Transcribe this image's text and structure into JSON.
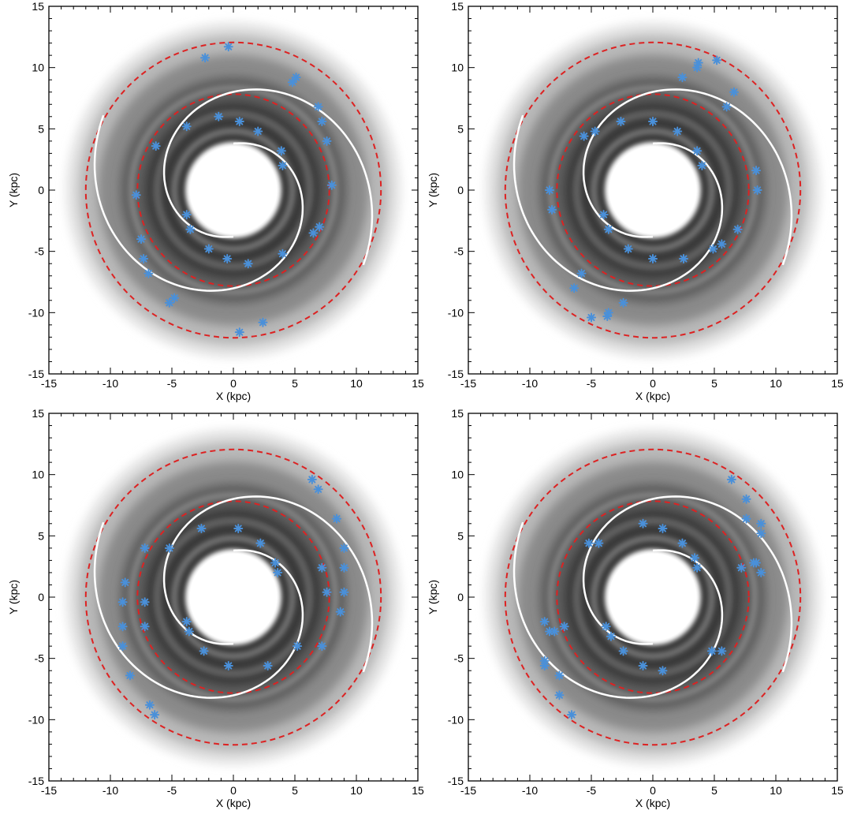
{
  "figure": {
    "layout": "2x2 grid of panels",
    "background": "#ffffff",
    "disk_shading": "grayscale density map, white central hole",
    "colors": {
      "axes": "#000000",
      "dashed_circles": "#dd2222",
      "fitted_arms": "#ffffff",
      "markers": "#4a90d9"
    }
  },
  "chart_data": [
    {
      "type": "scatter",
      "panel": "top-left",
      "xlabel": "X (kpc)",
      "ylabel": "Y (kpc)",
      "xlim": [
        -15,
        15
      ],
      "ylim": [
        -15,
        15
      ],
      "xticks": [
        "-15",
        "-10",
        "-5",
        "0",
        "5",
        "10",
        "15"
      ],
      "yticks": [
        "-15",
        "-10",
        "-5",
        "0",
        "5",
        "10",
        "15"
      ],
      "dashed_circles_radius": [
        7.8,
        12.0
      ],
      "arm_fit": {
        "r_start": 3.8,
        "r_end": 12.2,
        "turns_deg": 300
      },
      "points": [
        [
          -2.3,
          10.8
        ],
        [
          -0.4,
          11.7
        ],
        [
          4.8,
          8.8
        ],
        [
          5.1,
          9.2
        ],
        [
          6.9,
          6.8
        ],
        [
          7.2,
          5.6
        ],
        [
          7.6,
          4.0
        ],
        [
          8.0,
          0.4
        ],
        [
          6.5,
          -3.5
        ],
        [
          7.0,
          -3.0
        ],
        [
          3.9,
          3.2
        ],
        [
          4.0,
          2.0
        ],
        [
          2.0,
          4.8
        ],
        [
          0.5,
          5.6
        ],
        [
          -1.2,
          6.0
        ],
        [
          -3.8,
          5.2
        ],
        [
          -6.3,
          3.6
        ],
        [
          -7.9,
          -0.4
        ],
        [
          -7.5,
          -4.0
        ],
        [
          -7.3,
          -5.6
        ],
        [
          -6.9,
          -6.8
        ],
        [
          -5.2,
          -9.2
        ],
        [
          -4.8,
          -8.8
        ],
        [
          0.5,
          -11.6
        ],
        [
          2.4,
          -10.8
        ],
        [
          4.0,
          -5.2
        ],
        [
          1.2,
          -6.0
        ],
        [
          -0.5,
          -5.6
        ],
        [
          -2.0,
          -4.8
        ],
        [
          -3.5,
          -3.2
        ],
        [
          -3.8,
          -2.0
        ]
      ]
    },
    {
      "type": "scatter",
      "panel": "top-right",
      "xlabel": "X (kpc)",
      "ylabel": "Y (kpc)",
      "xlim": [
        -15,
        15
      ],
      "ylim": [
        -15,
        15
      ],
      "xticks": [
        "-15",
        "-10",
        "-5",
        "0",
        "5",
        "10",
        "15"
      ],
      "yticks": [
        "-15",
        "-10",
        "-5",
        "0",
        "5",
        "10",
        "15"
      ],
      "dashed_circles_radius": [
        7.8,
        12.0
      ],
      "arm_fit": {
        "r_start": 3.8,
        "r_end": 12.2,
        "turns_deg": 300
      },
      "points": [
        [
          2.4,
          9.2
        ],
        [
          3.6,
          10.0
        ],
        [
          3.7,
          10.4
        ],
        [
          5.2,
          10.6
        ],
        [
          6.0,
          6.8
        ],
        [
          6.6,
          8.0
        ],
        [
          8.4,
          1.6
        ],
        [
          8.5,
          0.0
        ],
        [
          6.9,
          -3.2
        ],
        [
          5.6,
          -4.4
        ],
        [
          4.9,
          -4.8
        ],
        [
          3.6,
          3.2
        ],
        [
          4.0,
          2.0
        ],
        [
          2.0,
          4.8
        ],
        [
          0.0,
          5.6
        ],
        [
          -2.6,
          5.6
        ],
        [
          -4.7,
          4.8
        ],
        [
          -5.6,
          4.4
        ],
        [
          -8.4,
          0.0
        ],
        [
          -8.2,
          -1.6
        ],
        [
          -5.8,
          -6.8
        ],
        [
          -6.4,
          -8.0
        ],
        [
          -5.0,
          -10.4
        ],
        [
          -3.6,
          -10.0
        ],
        [
          -3.7,
          -10.3
        ],
        [
          -2.4,
          -9.2
        ],
        [
          2.5,
          -5.6
        ],
        [
          0.0,
          -5.6
        ],
        [
          -2.0,
          -4.8
        ],
        [
          -3.6,
          -3.2
        ],
        [
          -4.0,
          -2.0
        ]
      ]
    },
    {
      "type": "scatter",
      "panel": "bottom-left",
      "xlabel": "X (kpc)",
      "ylabel": "Y (kpc)",
      "xlim": [
        -15,
        15
      ],
      "ylim": [
        -15,
        15
      ],
      "xticks": [
        "-15",
        "-10",
        "-5",
        "0",
        "5",
        "10",
        "15"
      ],
      "yticks": [
        "-15",
        "-10",
        "-5",
        "0",
        "5",
        "10",
        "15"
      ],
      "dashed_circles_radius": [
        7.8,
        12.0
      ],
      "arm_fit": {
        "r_start": 3.8,
        "r_end": 12.2,
        "turns_deg": 300
      },
      "points": [
        [
          6.4,
          9.6
        ],
        [
          6.9,
          8.8
        ],
        [
          8.4,
          6.4
        ],
        [
          7.2,
          2.4
        ],
        [
          7.6,
          0.4
        ],
        [
          9.0,
          4.0
        ],
        [
          9.0,
          2.4
        ],
        [
          9.0,
          0.4
        ],
        [
          8.7,
          -1.2
        ],
        [
          7.2,
          -4.0
        ],
        [
          5.2,
          -4.0
        ],
        [
          3.6,
          2.0
        ],
        [
          3.4,
          2.8
        ],
        [
          2.2,
          4.4
        ],
        [
          0.4,
          5.6
        ],
        [
          -2.6,
          5.6
        ],
        [
          -5.2,
          4.0
        ],
        [
          -7.2,
          4.0
        ],
        [
          -8.8,
          1.2
        ],
        [
          -9.0,
          -0.4
        ],
        [
          -7.2,
          -0.4
        ],
        [
          -9.0,
          -2.4
        ],
        [
          -7.2,
          -2.4
        ],
        [
          -9.0,
          -4.0
        ],
        [
          -8.4,
          -6.4
        ],
        [
          -6.8,
          -8.8
        ],
        [
          -6.4,
          -9.6
        ],
        [
          2.8,
          -5.6
        ],
        [
          -0.4,
          -5.6
        ],
        [
          -2.4,
          -4.4
        ],
        [
          -3.6,
          -2.8
        ],
        [
          -3.8,
          -2.0
        ]
      ]
    },
    {
      "type": "scatter",
      "panel": "bottom-right",
      "xlabel": "X (kpc)",
      "ylabel": "Y (kpc)",
      "xlim": [
        -15,
        15
      ],
      "ylim": [
        -15,
        15
      ],
      "xticks": [
        "-15",
        "-10",
        "-5",
        "0",
        "5",
        "10",
        "15"
      ],
      "yticks": [
        "-15",
        "-10",
        "-5",
        "0",
        "5",
        "10",
        "15"
      ],
      "dashed_circles_radius": [
        7.8,
        12.0
      ],
      "arm_fit": {
        "r_start": 3.8,
        "r_end": 12.2,
        "turns_deg": 300
      },
      "points": [
        [
          6.4,
          9.6
        ],
        [
          7.6,
          8.0
        ],
        [
          7.6,
          6.4
        ],
        [
          8.8,
          6.0
        ],
        [
          8.8,
          5.2
        ],
        [
          7.2,
          2.4
        ],
        [
          8.2,
          2.8
        ],
        [
          8.4,
          2.8
        ],
        [
          8.8,
          2.0
        ],
        [
          5.6,
          -4.4
        ],
        [
          4.8,
          -4.4
        ],
        [
          3.6,
          2.4
        ],
        [
          3.4,
          3.2
        ],
        [
          2.4,
          4.4
        ],
        [
          0.8,
          5.6
        ],
        [
          -0.8,
          6.0
        ],
        [
          -4.4,
          4.4
        ],
        [
          -5.2,
          4.4
        ],
        [
          -8.8,
          -2.0
        ],
        [
          -8.4,
          -2.8
        ],
        [
          -8.0,
          -2.8
        ],
        [
          -7.2,
          -2.4
        ],
        [
          -8.8,
          -5.2
        ],
        [
          -8.8,
          -5.6
        ],
        [
          -7.6,
          -6.4
        ],
        [
          -7.6,
          -8.0
        ],
        [
          -6.6,
          -9.6
        ],
        [
          0.8,
          -6.0
        ],
        [
          -0.8,
          -5.6
        ],
        [
          -2.4,
          -4.4
        ],
        [
          -3.4,
          -3.2
        ],
        [
          -3.8,
          -2.4
        ]
      ]
    }
  ]
}
